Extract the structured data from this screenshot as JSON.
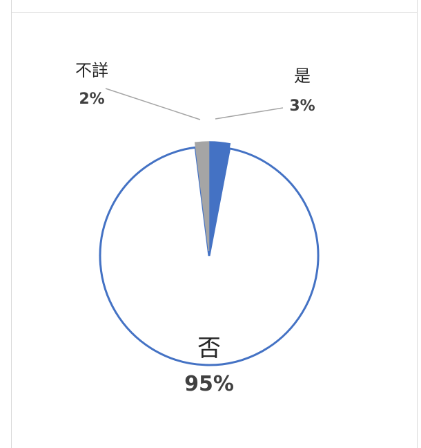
{
  "chart_data": {
    "type": "pie",
    "categories": [
      "是",
      "否",
      "不詳"
    ],
    "values": [
      3,
      95,
      2
    ],
    "value_labels": [
      "3%",
      "95%",
      "2%"
    ],
    "colors": [
      "#4472C4",
      "#FFFFFF",
      "#A5A5A5"
    ],
    "outline_colors": [
      "#4472C4",
      "#4472C4",
      "#A5A5A5"
    ],
    "exploded": true,
    "start_angle": 0,
    "direction": "clockwise",
    "legend": "none"
  }
}
